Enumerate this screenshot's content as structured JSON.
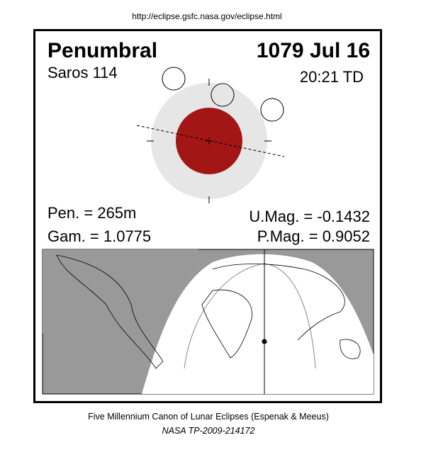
{
  "header": {
    "url": "http://eclipse.gsfc.nasa.gov/eclipse.html"
  },
  "eclipse": {
    "type": "Penumbral",
    "date": "1079 Jul 16",
    "saros": "Saros 114",
    "time": "20:21 TD",
    "pen_duration": "Pen. = 265m",
    "gamma": "Gam. = 1.0775",
    "umag": "U.Mag. = -0.1432",
    "pmag": "P.Mag. = 0.9052"
  },
  "footer": {
    "canon": "Five Millennium Canon of Lunar Eclipses (Espenak & Meeus)",
    "reference": "NASA TP-2009-214172"
  }
}
